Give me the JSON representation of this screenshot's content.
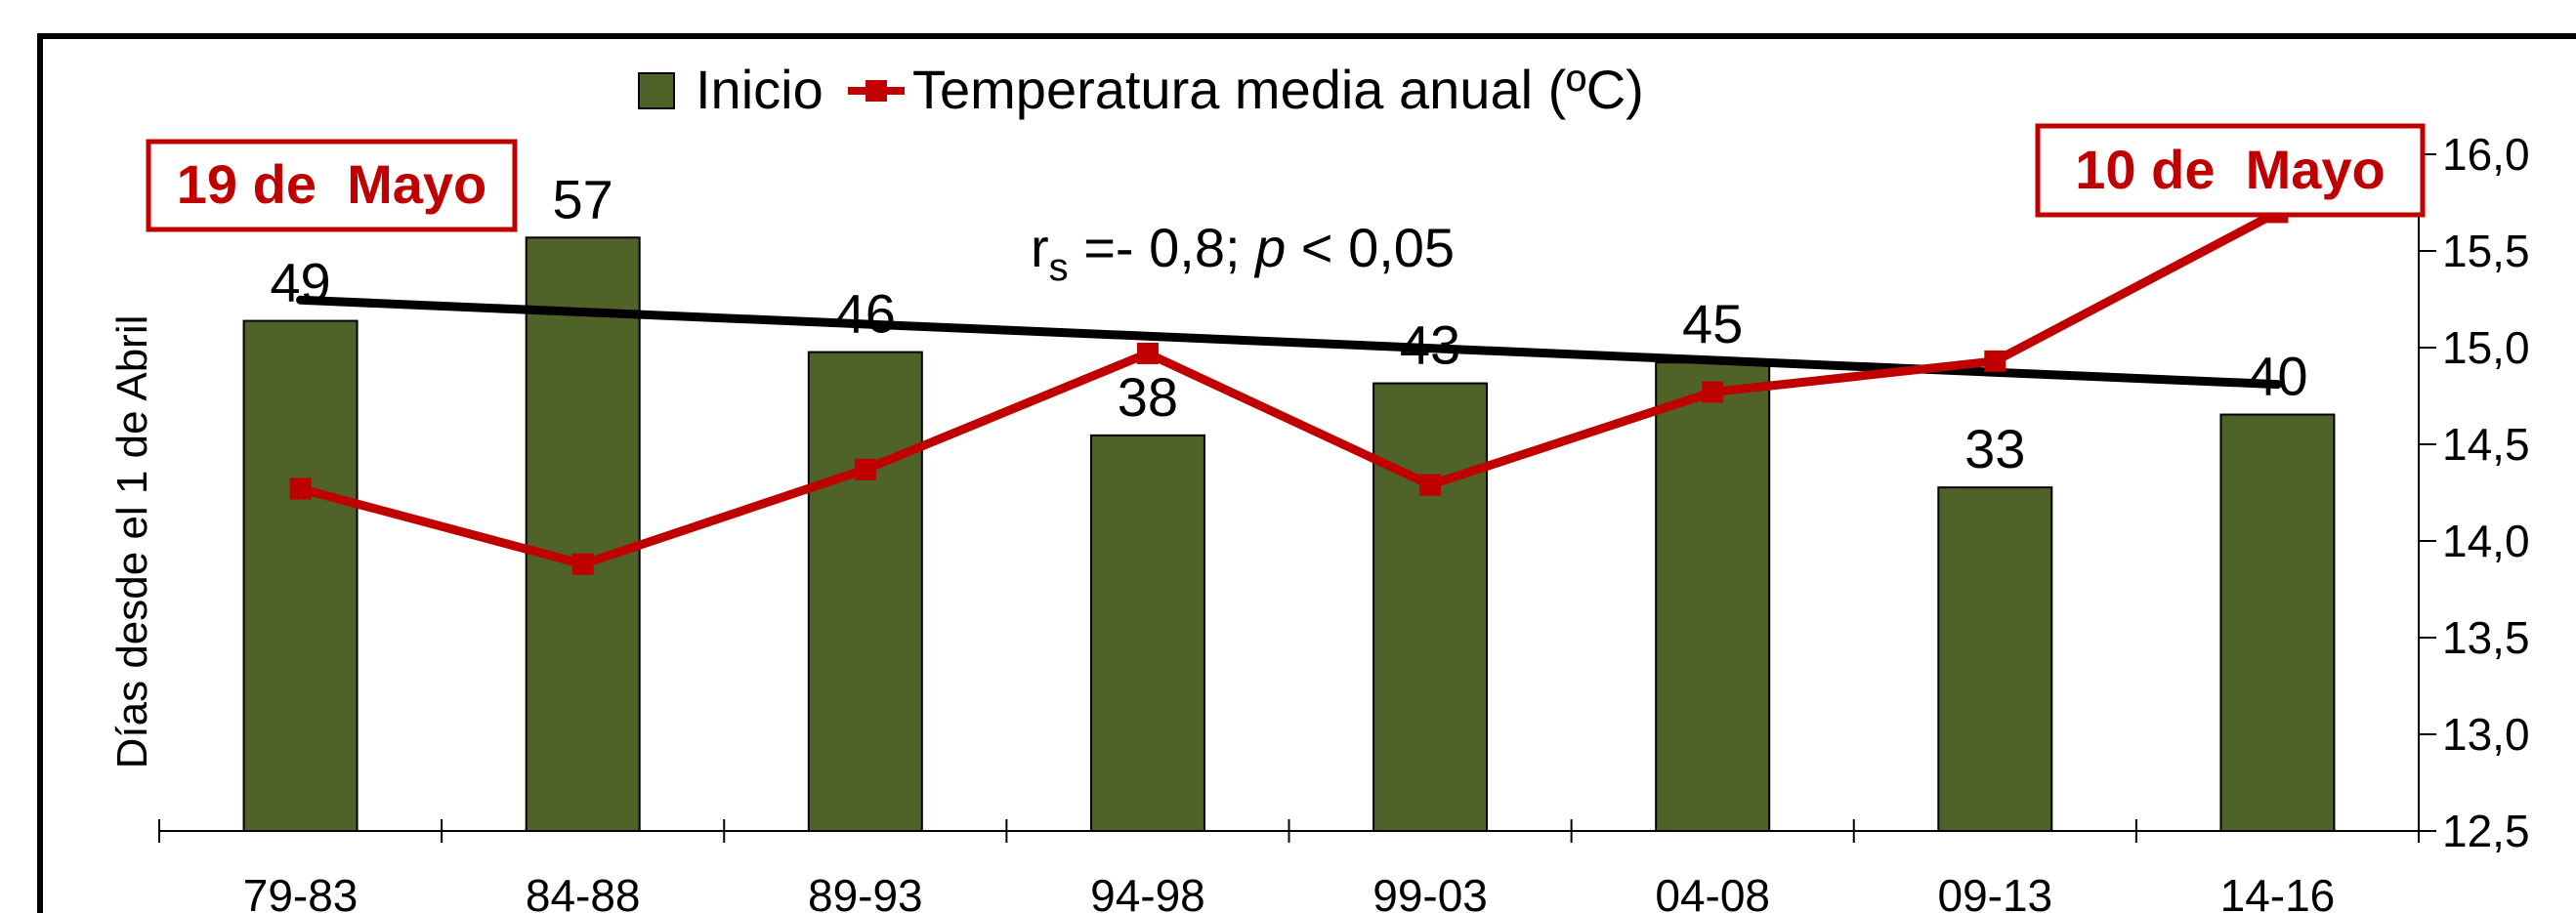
{
  "chart_data": {
    "type": "bar",
    "categories": [
      "79-83",
      "84-88",
      "89-93",
      "94-98",
      "99-03",
      "04-08",
      "09-13",
      "14-16"
    ],
    "series": [
      {
        "name": "Inicio",
        "type": "bar",
        "axis": "left",
        "values": [
          49,
          57,
          46,
          38,
          43,
          45,
          33,
          40
        ],
        "color": "#4F6228",
        "data_labels": [
          "49",
          "57",
          "46",
          "38",
          "43",
          "45",
          "33",
          "40"
        ]
      },
      {
        "name": "Temperatura media anual (ºC)",
        "type": "line",
        "axis": "right",
        "values": [
          14.27,
          13.88,
          14.37,
          14.97,
          14.29,
          14.77,
          14.93,
          15.7
        ],
        "color": "#C00000"
      },
      {
        "name": "",
        "type": "trendline",
        "axis": "left",
        "values": [
          51.0,
          49.9,
          48.8,
          47.7,
          46.5,
          45.3,
          44.1,
          42.9
        ],
        "color": "#000000"
      }
    ],
    "ylabel": "Días desde el 1 de Abril",
    "ylim": [
      0,
      65
    ],
    "y2lim": [
      12.5,
      16.0
    ],
    "y2_ticks": [
      "12,5",
      "13,0",
      "13,5",
      "14,0",
      "14,5",
      "15,0",
      "15,5",
      "16,0"
    ],
    "legend_position": "top-center",
    "grid": false,
    "annotations": {
      "left_box": "19 de  Mayo",
      "right_box": "10 de  Mayo",
      "stat_r": "r",
      "stat_sub": "s",
      "stat_mid": " =- 0,8; ",
      "stat_p": "p",
      "stat_end": " < 0,05"
    }
  }
}
